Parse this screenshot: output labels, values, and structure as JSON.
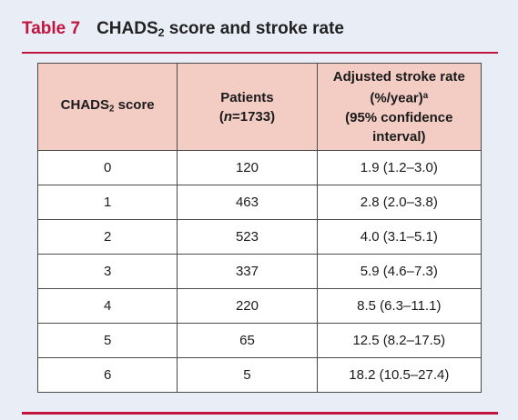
{
  "title": {
    "label": "Table 7",
    "main": "CHADS",
    "sub": "2",
    "rest": " score and stroke rate"
  },
  "table": {
    "headers": {
      "score": {
        "main": "CHADS",
        "sub": "2",
        "rest": " score"
      },
      "patients": {
        "line1": "Patients",
        "open": "(",
        "n": "n",
        "rest": "=1733)"
      },
      "rate": {
        "line1": "Adjusted stroke rate",
        "line2": "(%/year)",
        "line2_sup": "a",
        "line3": "(95% confidence",
        "line4": "interval)"
      }
    },
    "rows": [
      {
        "score": "0",
        "patients": "120",
        "rate": "1.9 (1.2–3.0)"
      },
      {
        "score": "1",
        "patients": "463",
        "rate": "2.8 (2.0–3.8)"
      },
      {
        "score": "2",
        "patients": "523",
        "rate": "4.0 (3.1–5.1)"
      },
      {
        "score": "3",
        "patients": "337",
        "rate": "5.9 (4.6–7.3)"
      },
      {
        "score": "4",
        "patients": "220",
        "rate": "8.5 (6.3–11.1)"
      },
      {
        "score": "5",
        "patients": "65",
        "rate": "12.5 (8.2–17.5)"
      },
      {
        "score": "6",
        "patients": "5",
        "rate": "18.2 (10.5–27.4)"
      }
    ]
  },
  "colors": {
    "accent": "#c2143e",
    "panel_bg": "#e9eef6",
    "header_bg": "#f3ccc4"
  }
}
